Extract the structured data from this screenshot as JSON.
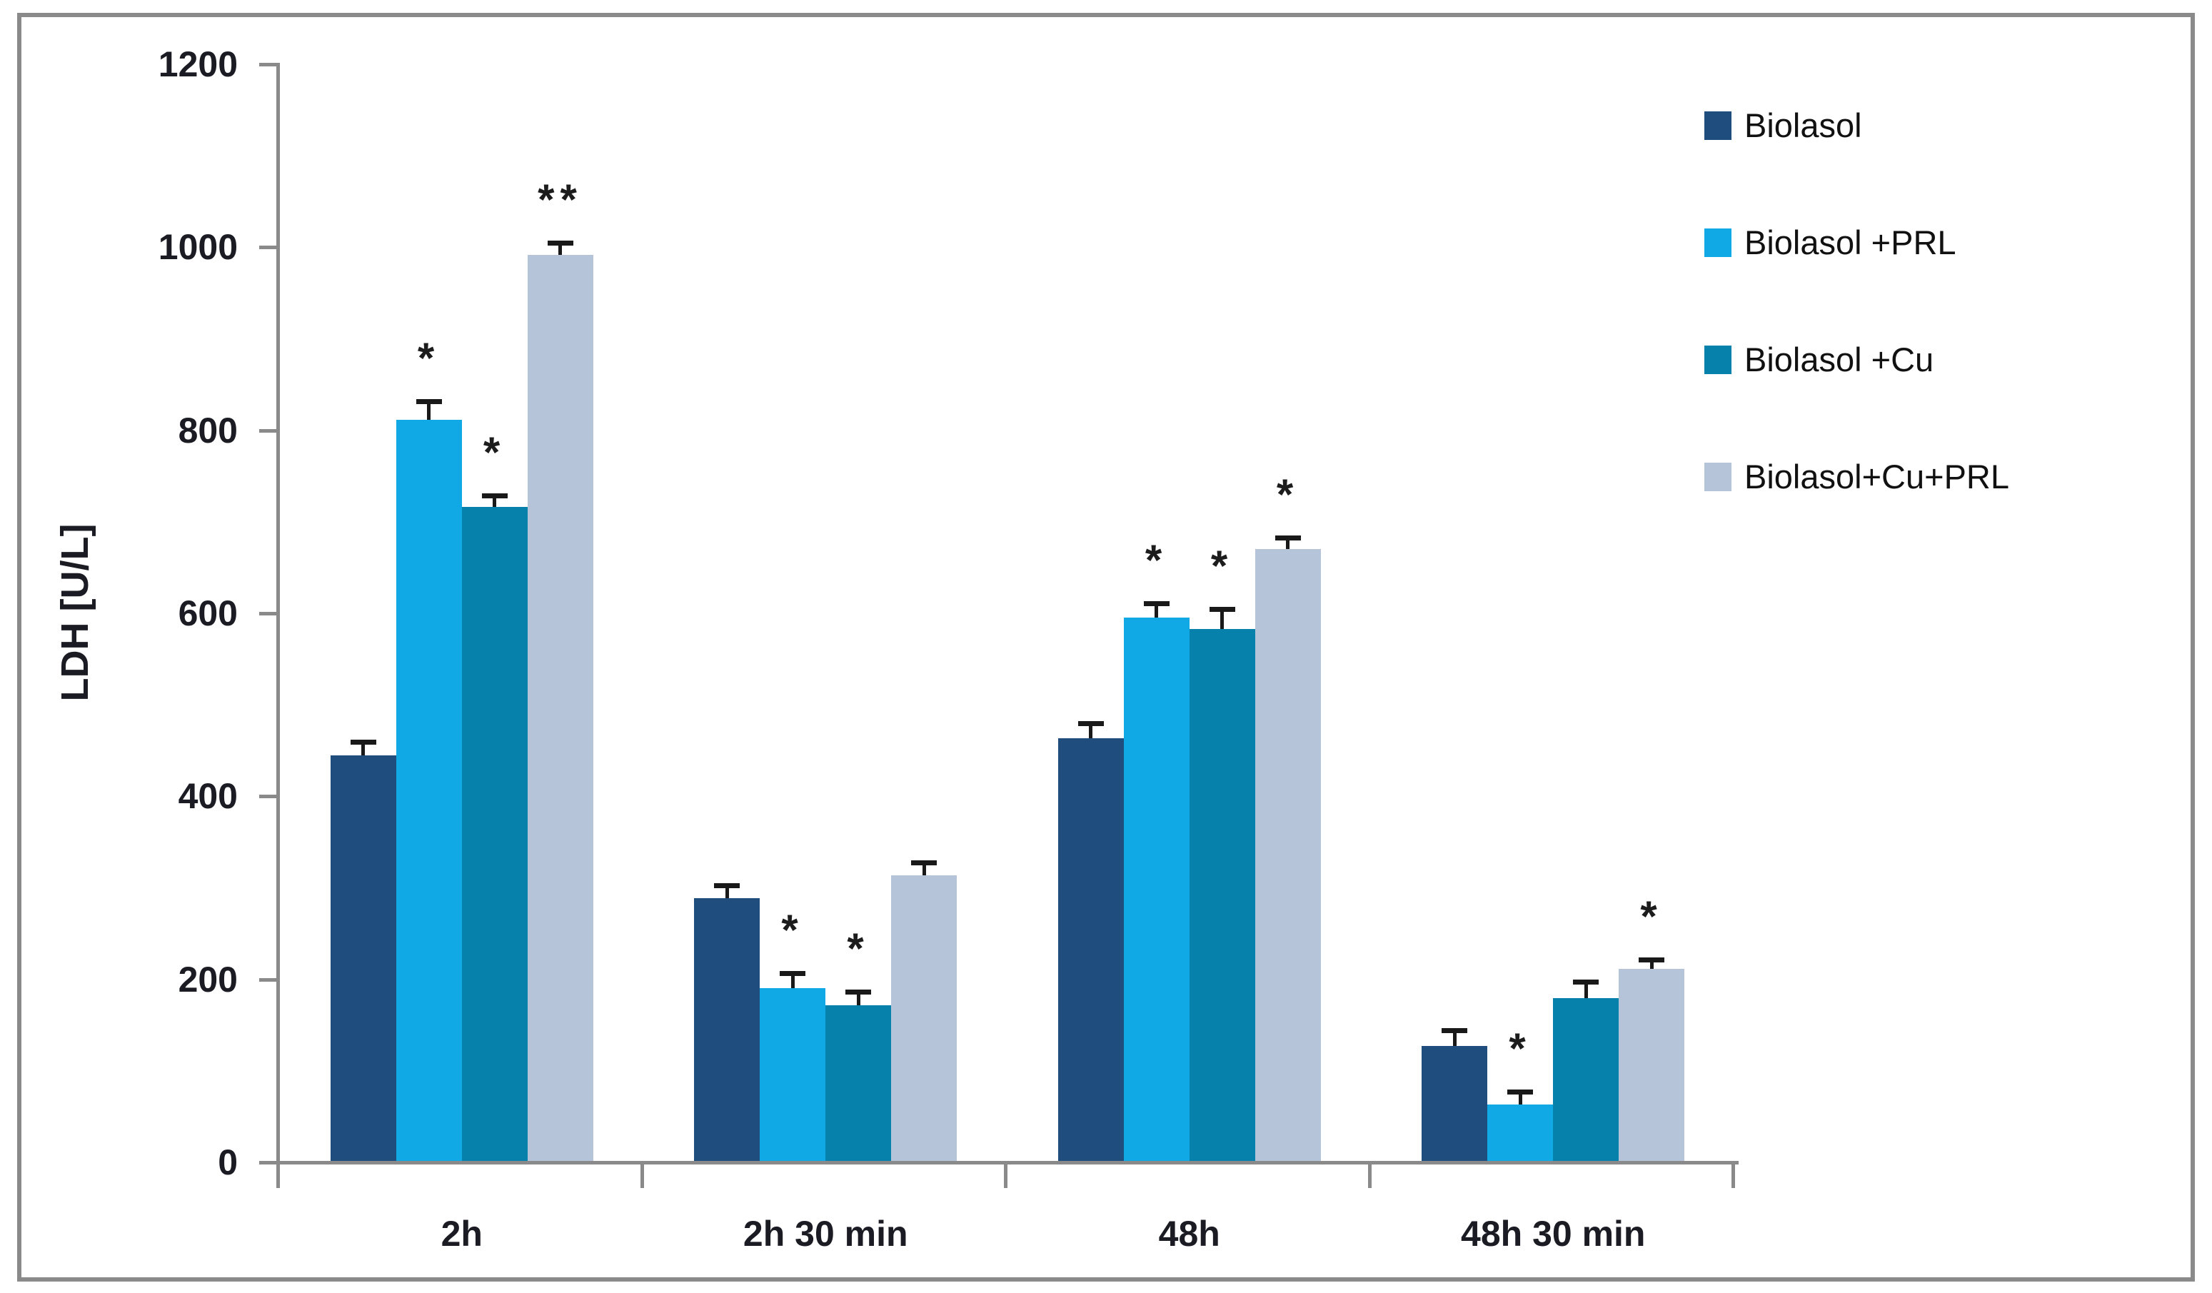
{
  "figure": {
    "background": "#ffffff",
    "border_color": "#8a8a8a",
    "axis_color": "#8a8a8a",
    "text_color": "#1b1b24",
    "error_bar_color": "#191919"
  },
  "chart_data": {
    "type": "bar",
    "title": "",
    "xlabel": "",
    "ylabel": "LDH [U/L]",
    "ylim": [
      0,
      1200
    ],
    "ytick_step": 200,
    "yticks": [
      0,
      200,
      400,
      600,
      800,
      1000,
      1200
    ],
    "grid": false,
    "legend_position": "right",
    "categories": [
      "2h",
      "2h 30 min",
      "48h",
      "48h 30 min"
    ],
    "series": [
      {
        "name": "Biolasol",
        "color": "#1f4e7e",
        "values": [
          443,
          287,
          462,
          126
        ],
        "errors": [
          15,
          14,
          16,
          17
        ],
        "significance": [
          "",
          "",
          "",
          ""
        ]
      },
      {
        "name": "Biolasol +PRL",
        "color": "#10a9e6",
        "values": [
          810,
          189,
          594,
          62
        ],
        "errors": [
          20,
          16,
          15,
          14
        ],
        "significance": [
          "*",
          "*",
          "*",
          "*"
        ]
      },
      {
        "name": "Biolasol +Cu",
        "color": "#0581ac",
        "values": [
          715,
          170,
          581,
          178
        ],
        "errors": [
          12,
          15,
          22,
          18
        ],
        "significance": [
          "*",
          "*",
          "*",
          ""
        ]
      },
      {
        "name": "Biolasol+Cu+PRL",
        "color": "#b6c4da",
        "values": [
          990,
          312,
          669,
          210
        ],
        "errors": [
          13,
          14,
          12,
          10
        ],
        "significance": [
          "**",
          "",
          "*",
          "*"
        ]
      }
    ]
  }
}
